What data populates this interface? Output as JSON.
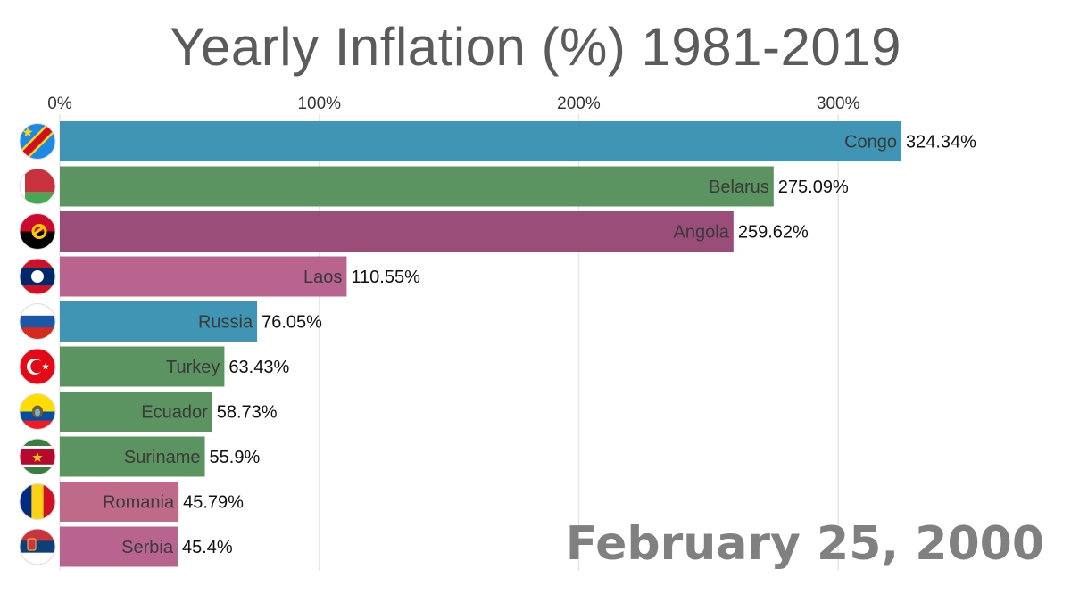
{
  "chart_data": {
    "type": "bar",
    "orientation": "horizontal",
    "title": "Yearly Inflation (%) 1981-2019",
    "date": "February 25, 2000",
    "x_ticks": [
      "0%",
      "100%",
      "200%",
      "300%"
    ],
    "x_tick_values": [
      0,
      100,
      200,
      300
    ],
    "xlim": [
      0,
      324.34
    ],
    "grid": true,
    "categories": [
      "Congo",
      "Belarus",
      "Angola",
      "Laos",
      "Russia",
      "Turkey",
      "Ecuador",
      "Suriname",
      "Romania",
      "Serbia"
    ],
    "values": [
      324.34,
      275.09,
      259.62,
      110.55,
      76.05,
      63.43,
      58.73,
      55.9,
      45.79,
      45.4
    ],
    "value_labels": [
      "324.34%",
      "275.09%",
      "259.62%",
      "110.55%",
      "76.05%",
      "63.43%",
      "58.73%",
      "55.9%",
      "45.79%",
      "45.4%"
    ],
    "colors": [
      "#3f95b3",
      "#5b9460",
      "#9a4d78",
      "#b9648f",
      "#3f95b3",
      "#5b9460",
      "#5b9460",
      "#5b9460",
      "#c06a8a",
      "#b9648f"
    ],
    "flag_icons": [
      "congo-flag-icon",
      "belarus-flag-icon",
      "angola-flag-icon",
      "laos-flag-icon",
      "russia-flag-icon",
      "turkey-flag-icon",
      "ecuador-flag-icon",
      "suriname-flag-icon",
      "romania-flag-icon",
      "serbia-flag-icon"
    ]
  }
}
